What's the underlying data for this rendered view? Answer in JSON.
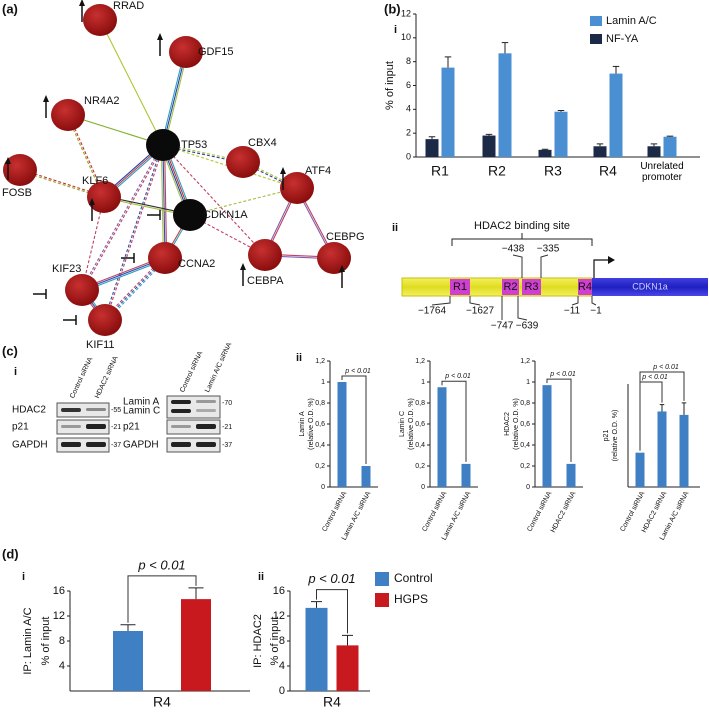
{
  "panels": {
    "a": "(a)",
    "b": "(b)",
    "c": "(c)",
    "d": "(d)",
    "b_i": "i",
    "b_ii": "ii",
    "c_i": "i",
    "c_ii": "ii",
    "d_i": "i",
    "d_ii": "ii"
  },
  "network": {
    "nodes": [
      "RRAD",
      "GDF15",
      "NR4A2",
      "TP53",
      "CBX4",
      "ATF4",
      "KLF6",
      "FOSB",
      "CDKN1A",
      "CEBPG",
      "CEBPA",
      "CCNA2",
      "KIF23",
      "KIF11"
    ]
  },
  "promoter": {
    "title": "HDAC2 binding site",
    "regions": [
      "R1",
      "R2",
      "R3",
      "R4"
    ],
    "gene": "CDKN1a",
    "positions": [
      "−1764",
      "−1627",
      "−747",
      "−639",
      "−438",
      "−335",
      "−11",
      "−1"
    ]
  },
  "blots": [
    {
      "lanes": [
        "Control siRNA",
        "HDAC2 siRNA"
      ],
      "rows": [
        "HDAC2",
        "p21",
        "GAPDH"
      ],
      "sizes": [
        "-55",
        "-21",
        "-37"
      ]
    },
    {
      "lanes": [
        "Control siRNA",
        "Lamin A/C siRNA"
      ],
      "rows": [
        "Lamin A",
        "Lamin C",
        "p21",
        "GAPDH"
      ],
      "sizes": [
        "-70",
        "-21",
        "-37"
      ]
    }
  ],
  "chart_data": [
    {
      "type": "bar",
      "ylabel": [
        "% of input"
      ],
      "categories": [
        "R1",
        "R2",
        "R3",
        "R4",
        "Unrelated promoter"
      ],
      "series": [
        {
          "name": "NF-YA",
          "color": "#1b2a47",
          "values": [
            1.5,
            1.8,
            0.6,
            0.9,
            0.9
          ],
          "errors": [
            0.2,
            0.1,
            0.05,
            0.2,
            0.2
          ]
        },
        {
          "name": "Lamin A/C",
          "color": "#4a8fd2",
          "values": [
            7.5,
            8.7,
            3.8,
            7.0,
            1.7
          ],
          "errors": [
            0.9,
            0.9,
            0.1,
            0.6,
            0.05
          ]
        }
      ],
      "ylim": [
        0,
        12
      ],
      "yticks": [
        0,
        2,
        4,
        6,
        8,
        10,
        12
      ],
      "legend": "top-right"
    },
    {
      "type": "bar",
      "ylabel": [
        "Lamin A",
        "(relative O.D. %)"
      ],
      "categories": [
        "Control siRNA",
        "Lamin A/C siRNA"
      ],
      "values": [
        1,
        0.2
      ],
      "color": "#3f7fc4",
      "annotations": [
        "p < 0.01"
      ],
      "ylim": [
        0,
        1.2
      ],
      "yticks": [
        0,
        {
          "value": 0.2,
          "label": "0,2"
        },
        {
          "value": 0.4,
          "label": "0,4"
        },
        {
          "value": 0.6,
          "label": "0,6"
        },
        {
          "value": 0.8,
          "label": "0,8"
        },
        1,
        {
          "value": 1.2,
          "label": "1,2"
        }
      ]
    },
    {
      "type": "bar",
      "ylabel": [
        "Lamin C",
        "(relative O.D. %)"
      ],
      "categories": [
        "Control siRNA",
        "Lamin A/C siRNA"
      ],
      "values": [
        0.95,
        0.22
      ],
      "color": "#3f7fc4",
      "annotations": [
        "p < 0.01"
      ],
      "ylim": [
        0,
        1.2
      ],
      "yticks": [
        0,
        {
          "value": 0.2,
          "label": "0,2"
        },
        {
          "value": 0.4,
          "label": "0,4"
        },
        {
          "value": 0.6,
          "label": "0,6"
        },
        {
          "value": 0.8,
          "label": "0,8"
        },
        1,
        {
          "value": 1.2,
          "label": "1,2"
        }
      ]
    },
    {
      "type": "bar",
      "ylabel": [
        "HDAC2",
        "(relative O.D. %)"
      ],
      "categories": [
        "Control siRNA",
        "HDAC2 siRNA"
      ],
      "values": [
        0.97,
        0.22
      ],
      "color": "#3f7fc4",
      "annotations": [
        "p < 0.01"
      ],
      "ylim": [
        0,
        1.2
      ],
      "yticks": [
        0,
        {
          "value": 0.2,
          "label": "0,2"
        },
        {
          "value": 0.4,
          "label": "0,4"
        },
        {
          "value": 0.6,
          "label": "0,6"
        },
        {
          "value": 0.8,
          "label": "0,8"
        },
        1,
        {
          "value": 1.2,
          "label": "1,2"
        }
      ]
    },
    {
      "type": "bar",
      "ylabel": [
        "p21",
        "(relative O.D. %)"
      ],
      "categories": [
        "Control siRNA",
        "HDAC2 siRNA",
        "Lamin A/C siRNA"
      ],
      "values": [
        1,
        2.2,
        2.1
      ],
      "errors": [
        0,
        0.2,
        0.35
      ],
      "color": "#3f7fc4",
      "annotations": [
        "p < 0.01",
        "p < 0.01"
      ],
      "ylim": [
        0,
        3
      ]
    },
    {
      "type": "bar",
      "ylabel": [
        "IP: Lamin A/C",
        "% of input"
      ],
      "categories": [
        "R4"
      ],
      "series": [
        {
          "name": "Control",
          "color": "#3f7fc4",
          "values": [
            9.6
          ],
          "errors": [
            1
          ]
        },
        {
          "name": "HGPS",
          "color": "#c8191e",
          "values": [
            14.7
          ],
          "errors": [
            1.8
          ]
        }
      ],
      "annotations": [
        "p < 0.01"
      ],
      "ylim": [
        0,
        16
      ],
      "yticks": [
        4,
        8,
        12,
        16
      ],
      "legend": "right"
    },
    {
      "type": "bar",
      "ylabel": [
        "IP: HDAC2",
        "% of input"
      ],
      "categories": [
        "R4"
      ],
      "series": [
        {
          "color": "#3f7fc4",
          "values": [
            13.3
          ],
          "errors": [
            1
          ]
        },
        {
          "color": "#c8191e",
          "values": [
            7.3
          ],
          "errors": [
            1.6
          ]
        }
      ],
      "annotations": [
        "p < 0.01"
      ],
      "ylim": [
        0,
        16
      ],
      "yticks": [
        0,
        4,
        8,
        12,
        16
      ]
    }
  ]
}
